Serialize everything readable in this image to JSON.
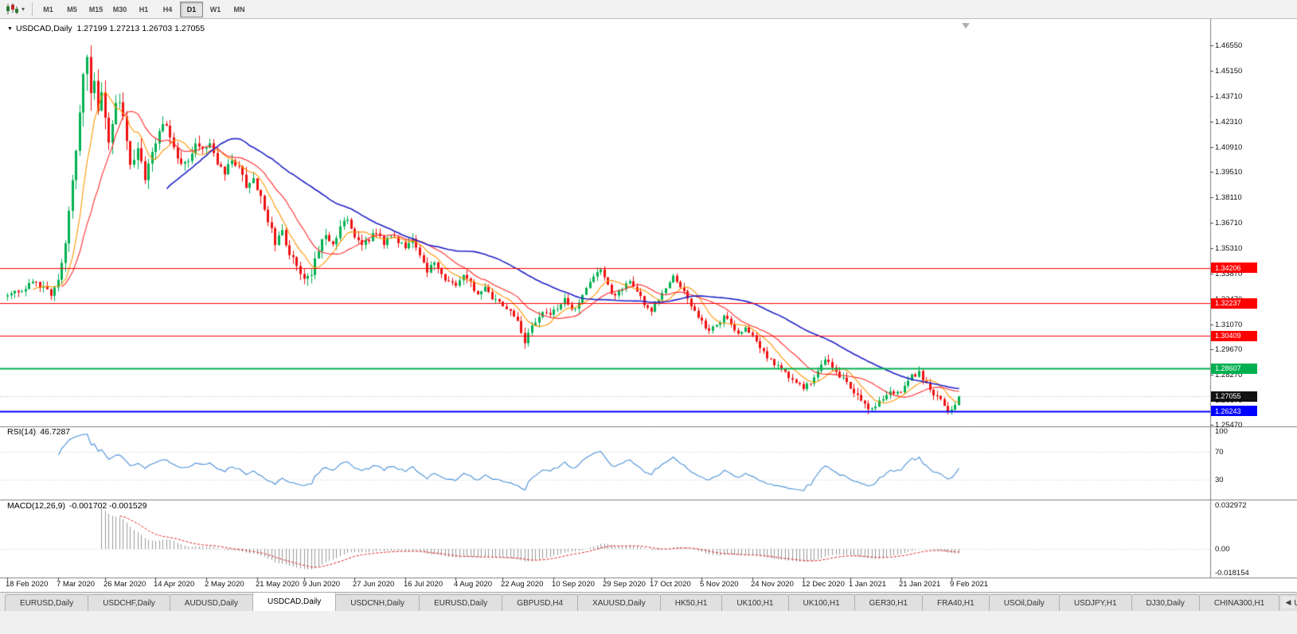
{
  "icons": {
    "chart_type": "candlestick-chart-icon",
    "chart_type_caret": "▾",
    "one_click_toggle": "▼",
    "tab_scroll_left": "◀",
    "shift_marker": "triangle-down"
  },
  "toolbar": {
    "timeframes": [
      "M1",
      "M5",
      "M15",
      "M30",
      "H1",
      "H4",
      "D1",
      "W1",
      "MN"
    ],
    "selected_timeframe": "D1"
  },
  "chart": {
    "symbol_period": "USDCAD,Daily",
    "ohlc": "1.27199 1.27213 1.26703 1.27055"
  },
  "price_axis": [
    "1.46550",
    "1.45150",
    "1.43710",
    "1.42310",
    "1.40910",
    "1.39510",
    "1.38110",
    "1.36710",
    "1.35310",
    "1.33870",
    "1.32470",
    "1.31070",
    "1.29670",
    "1.28270",
    "1.26870",
    "1.25470"
  ],
  "levels": [
    {
      "label": "1.34206",
      "price": 1.34206,
      "color": "#ff0000",
      "width": 1
    },
    {
      "label": "1.32237",
      "price": 1.32237,
      "color": "#ff0000",
      "width": 1
    },
    {
      "label": "1.30409",
      "price": 1.30409,
      "color": "#ff0000",
      "width": 1
    },
    {
      "label": "1.28607",
      "price": 1.28607,
      "color": "#00b050",
      "width": 2
    },
    {
      "label": "1.26243",
      "price": 1.26243,
      "color": "#0000ff",
      "width": 2
    }
  ],
  "current_price": {
    "label": "1.27055",
    "price": 1.27055,
    "badge_color": "#111111"
  },
  "rsi_panel": {
    "name": "RSI(14)",
    "value": "46.7287",
    "axis_labels": [
      "100",
      "70",
      "30"
    ],
    "level_lines": [
      70,
      30
    ],
    "line_color": "#4a90d9"
  },
  "macd_panel": {
    "name": "MACD(12,26,9)",
    "values": "-0.001702 -0.001529",
    "axis_labels": [
      "0.032972",
      "0.00",
      "-0.018154"
    ],
    "histogram_color": "#999999",
    "signal_color": "#e02020"
  },
  "tabs": {
    "items": [
      "EURUSD,Daily",
      "USDCHF,Daily",
      "AUDUSD,Daily",
      "USDCAD,Daily",
      "USDCNH,Daily",
      "EURUSD,Daily",
      "GBPUSD,H4",
      "XAUUSD,Daily",
      "HK50,H1",
      "UK100,H1",
      "UK100,H1",
      "GER30,H1",
      "FRA40,H1",
      "USOil,Daily",
      "USDJPY,H1",
      "DJ30,Daily",
      "CHINA300,H1",
      "USC"
    ],
    "active_index": 3
  },
  "chart_data": {
    "type": "candlestick",
    "title": "USDCAD,Daily",
    "bar_count": 264,
    "visible_price_range": [
      1.2544,
      1.4775
    ],
    "up_color": "#00b050",
    "down_color": "#ee1111",
    "dates": [
      "18 Feb 2020",
      "7 Mar 2020",
      "26 Mar 2020",
      "14 Apr 2020",
      "2 May 2020",
      "21 May 2020",
      "9 Jun 2020",
      "27 Jun 2020",
      "16 Jul 2020",
      "4 Aug 2020",
      "22 Aug 2020",
      "10 Sep 2020",
      "29 Sep 2020",
      "17 Oct 2020",
      "5 Nov 2020",
      "24 Nov 2020",
      "12 Dec 2020",
      "1 Jan 2021",
      "21 Jan 2021",
      "9 Feb 2021"
    ],
    "date_label_indices": [
      0,
      14,
      27,
      41,
      55,
      69,
      82,
      96,
      110,
      124,
      137,
      151,
      165,
      178,
      192,
      206,
      220,
      233,
      247,
      261
    ],
    "close_anchors": [
      [
        0,
        1.3265
      ],
      [
        4,
        1.33
      ],
      [
        7,
        1.334
      ],
      [
        10,
        1.331
      ],
      [
        12,
        1.327
      ],
      [
        14,
        1.336
      ],
      [
        16,
        1.356
      ],
      [
        18,
        1.39
      ],
      [
        20,
        1.428
      ],
      [
        21,
        1.45
      ],
      [
        22,
        1.462
      ],
      [
        23,
        1.438
      ],
      [
        24,
        1.448
      ],
      [
        25,
        1.428
      ],
      [
        26,
        1.442
      ],
      [
        28,
        1.412
      ],
      [
        30,
        1.435
      ],
      [
        32,
        1.428
      ],
      [
        34,
        1.4
      ],
      [
        36,
        1.408
      ],
      [
        38,
        1.392
      ],
      [
        40,
        1.405
      ],
      [
        42,
        1.418
      ],
      [
        44,
        1.422
      ],
      [
        46,
        1.41
      ],
      [
        48,
        1.398
      ],
      [
        50,
        1.402
      ],
      [
        52,
        1.412
      ],
      [
        54,
        1.406
      ],
      [
        56,
        1.41
      ],
      [
        58,
        1.398
      ],
      [
        60,
        1.395
      ],
      [
        62,
        1.402
      ],
      [
        64,
        1.398
      ],
      [
        66,
        1.388
      ],
      [
        68,
        1.392
      ],
      [
        70,
        1.382
      ],
      [
        72,
        1.368
      ],
      [
        74,
        1.356
      ],
      [
        76,
        1.362
      ],
      [
        78,
        1.35
      ],
      [
        80,
        1.343
      ],
      [
        82,
        1.334
      ],
      [
        84,
        1.338
      ],
      [
        86,
        1.353
      ],
      [
        88,
        1.362
      ],
      [
        90,
        1.355
      ],
      [
        92,
        1.364
      ],
      [
        94,
        1.37
      ],
      [
        96,
        1.36
      ],
      [
        98,
        1.3545
      ],
      [
        100,
        1.358
      ],
      [
        102,
        1.362
      ],
      [
        104,
        1.356
      ],
      [
        106,
        1.36
      ],
      [
        108,
        1.356
      ],
      [
        110,
        1.354
      ],
      [
        112,
        1.3575
      ],
      [
        114,
        1.348
      ],
      [
        116,
        1.34
      ],
      [
        118,
        1.3445
      ],
      [
        120,
        1.3385
      ],
      [
        122,
        1.334
      ],
      [
        124,
        1.333
      ],
      [
        126,
        1.339
      ],
      [
        128,
        1.333
      ],
      [
        130,
        1.327
      ],
      [
        132,
        1.331
      ],
      [
        134,
        1.3255
      ],
      [
        136,
        1.323
      ],
      [
        138,
        1.3205
      ],
      [
        140,
        1.316
      ],
      [
        142,
        1.306
      ],
      [
        143,
        1.301
      ],
      [
        144,
        1.306
      ],
      [
        146,
        1.312
      ],
      [
        148,
        1.318
      ],
      [
        150,
        1.3155
      ],
      [
        152,
        1.32
      ],
      [
        154,
        1.3245
      ],
      [
        156,
        1.318
      ],
      [
        158,
        1.323
      ],
      [
        160,
        1.332
      ],
      [
        162,
        1.338
      ],
      [
        164,
        1.3405
      ],
      [
        166,
        1.332
      ],
      [
        168,
        1.3255
      ],
      [
        170,
        1.331
      ],
      [
        172,
        1.3345
      ],
      [
        174,
        1.329
      ],
      [
        176,
        1.3215
      ],
      [
        178,
        1.3185
      ],
      [
        180,
        1.325
      ],
      [
        182,
        1.3305
      ],
      [
        184,
        1.337
      ],
      [
        186,
        1.332
      ],
      [
        188,
        1.325
      ],
      [
        190,
        1.318
      ],
      [
        192,
        1.312
      ],
      [
        194,
        1.306
      ],
      [
        196,
        1.3105
      ],
      [
        198,
        1.315
      ],
      [
        200,
        1.311
      ],
      [
        202,
        1.306
      ],
      [
        204,
        1.309
      ],
      [
        206,
        1.305
      ],
      [
        208,
        1.298
      ],
      [
        210,
        1.292
      ],
      [
        212,
        1.289
      ],
      [
        214,
        1.286
      ],
      [
        216,
        1.282
      ],
      [
        218,
        1.278
      ],
      [
        220,
        1.2755
      ],
      [
        222,
        1.279
      ],
      [
        224,
        1.285
      ],
      [
        226,
        1.292
      ],
      [
        228,
        1.287
      ],
      [
        230,
        1.282
      ],
      [
        232,
        1.278
      ],
      [
        234,
        1.2725
      ],
      [
        236,
        1.268
      ],
      [
        238,
        1.2625
      ],
      [
        240,
        1.264
      ],
      [
        242,
        1.27
      ],
      [
        244,
        1.2745
      ],
      [
        246,
        1.272
      ],
      [
        248,
        1.276
      ],
      [
        250,
        1.282
      ],
      [
        252,
        1.2835
      ],
      [
        254,
        1.277
      ],
      [
        256,
        1.272
      ],
      [
        258,
        1.268
      ],
      [
        260,
        1.2615
      ],
      [
        262,
        1.265
      ],
      [
        263,
        1.2706
      ]
    ],
    "volatility_anchors": [
      [
        0,
        0.0045
      ],
      [
        14,
        0.007
      ],
      [
        18,
        0.014
      ],
      [
        22,
        0.02
      ],
      [
        26,
        0.016
      ],
      [
        32,
        0.012
      ],
      [
        40,
        0.009
      ],
      [
        55,
        0.0085
      ],
      [
        70,
        0.008
      ],
      [
        85,
        0.008
      ],
      [
        100,
        0.006
      ],
      [
        120,
        0.0055
      ],
      [
        140,
        0.006
      ],
      [
        160,
        0.005
      ],
      [
        180,
        0.005
      ],
      [
        200,
        0.005
      ],
      [
        220,
        0.0055
      ],
      [
        240,
        0.006
      ],
      [
        263,
        0.005
      ]
    ],
    "moving_averages": [
      {
        "period": 8,
        "color": "#ff9500"
      },
      {
        "period": 16,
        "color": "#ff2a2a"
      },
      {
        "period": 45,
        "color": "#2121c8"
      }
    ],
    "indicators": {
      "rsi": {
        "period": 14,
        "current": 46.7287
      },
      "macd": {
        "fast": 12,
        "slow": 26,
        "signal": 9,
        "current_macd": -0.001702,
        "current_signal": -0.001529,
        "axis_max": 0.032972,
        "axis_min": -0.018154
      }
    }
  }
}
